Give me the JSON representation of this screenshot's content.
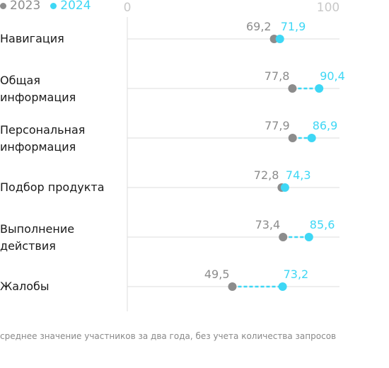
{
  "legend": {
    "label_2023": "2023",
    "label_2024": "2024"
  },
  "colors": {
    "series_2023": "#8c8c8c",
    "series_2024": "#3ed7f5",
    "grid": "#dddddd",
    "axis_ticks": "#c8c8c8"
  },
  "footnote": "среднее значение участников за два года, без учета количества запросов",
  "chart_data": {
    "type": "dot-range",
    "xlim": [
      0,
      100
    ],
    "tick_labels": [
      "0",
      "100"
    ],
    "categories": [
      "Навигация",
      "Общая информация",
      "Персональная информация",
      "Подбор продукта",
      "Выполнение действия",
      "Жалобы"
    ],
    "category_lines": [
      [
        "Навигация"
      ],
      [
        "Общая",
        "информация"
      ],
      [
        "Персональная",
        "информация"
      ],
      [
        "Подбор продукта"
      ],
      [
        "Выполнение",
        "действия"
      ],
      [
        "Жалобы"
      ]
    ],
    "series": [
      {
        "name": "2023",
        "values": [
          69.2,
          77.8,
          77.9,
          72.8,
          73.4,
          49.5
        ],
        "labels": [
          "69,2",
          "77,8",
          "77,9",
          "72,8",
          "73,4",
          "49,5"
        ]
      },
      {
        "name": "2024",
        "values": [
          71.9,
          90.4,
          86.9,
          74.3,
          85.6,
          73.2
        ],
        "labels": [
          "71,9",
          "90,4",
          "86,9",
          "74,3",
          "85,6",
          "73,2"
        ]
      }
    ],
    "grid": true,
    "legend_position": "top-left"
  }
}
